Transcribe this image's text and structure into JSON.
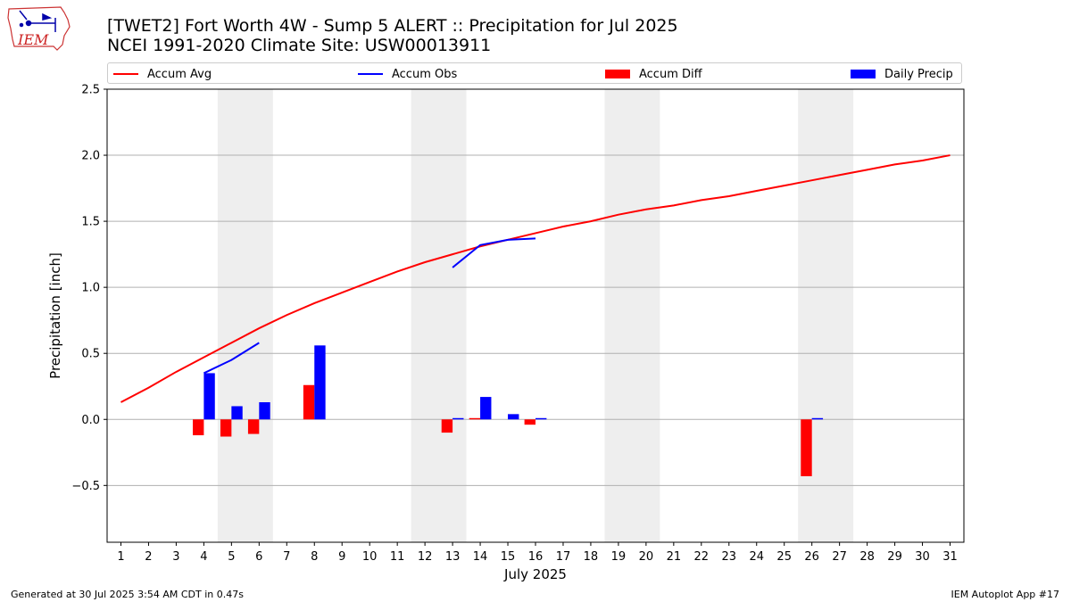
{
  "header": {
    "title_line1": "[TWET2] Fort Worth 4W - Sump 5 ALERT :: Precipitation for Jul 2025",
    "title_line2": "NCEI 1991-2020 Climate Site: USW00013911",
    "logo_text": "IEM"
  },
  "footer": {
    "generated": "Generated at 30 Jul 2025 3:54 AM CDT in 0.47s",
    "app": "IEM Autoplot App #17"
  },
  "legend": [
    {
      "label": "Accum Avg",
      "kind": "line",
      "color": "#ff0000"
    },
    {
      "label": "Accum Obs",
      "kind": "line",
      "color": "#0000ff"
    },
    {
      "label": "Accum Diff",
      "kind": "box",
      "color": "#ff0000"
    },
    {
      "label": "Daily Precip",
      "kind": "box",
      "color": "#0000ff"
    }
  ],
  "chart_data": {
    "type": "bar",
    "xlabel": "July 2025",
    "ylabel": "Precipitation [inch]",
    "xlim": [
      0.5,
      31.5
    ],
    "ylim": [
      -0.93,
      2.5
    ],
    "yticks": [
      -0.5,
      0.0,
      0.5,
      1.0,
      1.5,
      2.0,
      2.5
    ],
    "ytick_labels": [
      "−0.5",
      "0.0",
      "0.5",
      "1.0",
      "1.5",
      "2.0",
      "2.5"
    ],
    "xticks": [
      1,
      2,
      3,
      4,
      5,
      6,
      7,
      8,
      9,
      10,
      11,
      12,
      13,
      14,
      15,
      16,
      17,
      18,
      19,
      20,
      21,
      22,
      23,
      24,
      25,
      26,
      27,
      28,
      29,
      30,
      31
    ],
    "grid": "horizontal",
    "weekend_shading": [
      [
        4.5,
        6.5
      ],
      [
        11.5,
        13.5
      ],
      [
        18.5,
        20.5
      ],
      [
        25.5,
        27.5
      ]
    ],
    "shade_color": "#eeeeee",
    "accum_avg": {
      "name": "Accum Avg",
      "color": "#ff0000",
      "days": [
        1,
        2,
        3,
        4,
        5,
        6,
        7,
        8,
        9,
        10,
        11,
        12,
        13,
        14,
        15,
        16,
        17,
        18,
        19,
        20,
        21,
        22,
        23,
        24,
        25,
        26,
        27,
        28,
        29,
        30,
        31
      ],
      "values": [
        0.13,
        0.24,
        0.36,
        0.47,
        0.58,
        0.69,
        0.79,
        0.88,
        0.96,
        1.04,
        1.12,
        1.19,
        1.25,
        1.31,
        1.36,
        1.41,
        1.46,
        1.5,
        1.55,
        1.59,
        1.62,
        1.66,
        1.69,
        1.73,
        1.77,
        1.81,
        1.85,
        1.89,
        1.93,
        1.96,
        2.0
      ]
    },
    "accum_obs": {
      "name": "Accum Obs",
      "color": "#0000ff",
      "segments": [
        {
          "days": [
            4,
            5,
            6
          ],
          "values": [
            0.35,
            0.45,
            0.58
          ]
        },
        {
          "days": [
            13,
            14,
            15,
            16
          ],
          "values": [
            1.15,
            1.32,
            1.36,
            1.37
          ]
        }
      ]
    },
    "accum_diff": {
      "name": "Accum Diff",
      "color": "#ff0000",
      "days": [
        4,
        5,
        6,
        8,
        13,
        14,
        16,
        26
      ],
      "values": [
        -0.12,
        -0.13,
        -0.11,
        0.26,
        -0.1,
        0.01,
        -0.04,
        -0.43
      ]
    },
    "daily_precip": {
      "name": "Daily Precip",
      "color": "#0000ff",
      "days": [
        4,
        5,
        6,
        8,
        13,
        14,
        15,
        16,
        26
      ],
      "values": [
        0.35,
        0.1,
        0.13,
        0.56,
        0.01,
        0.17,
        0.04,
        0.01,
        0.01
      ]
    }
  }
}
